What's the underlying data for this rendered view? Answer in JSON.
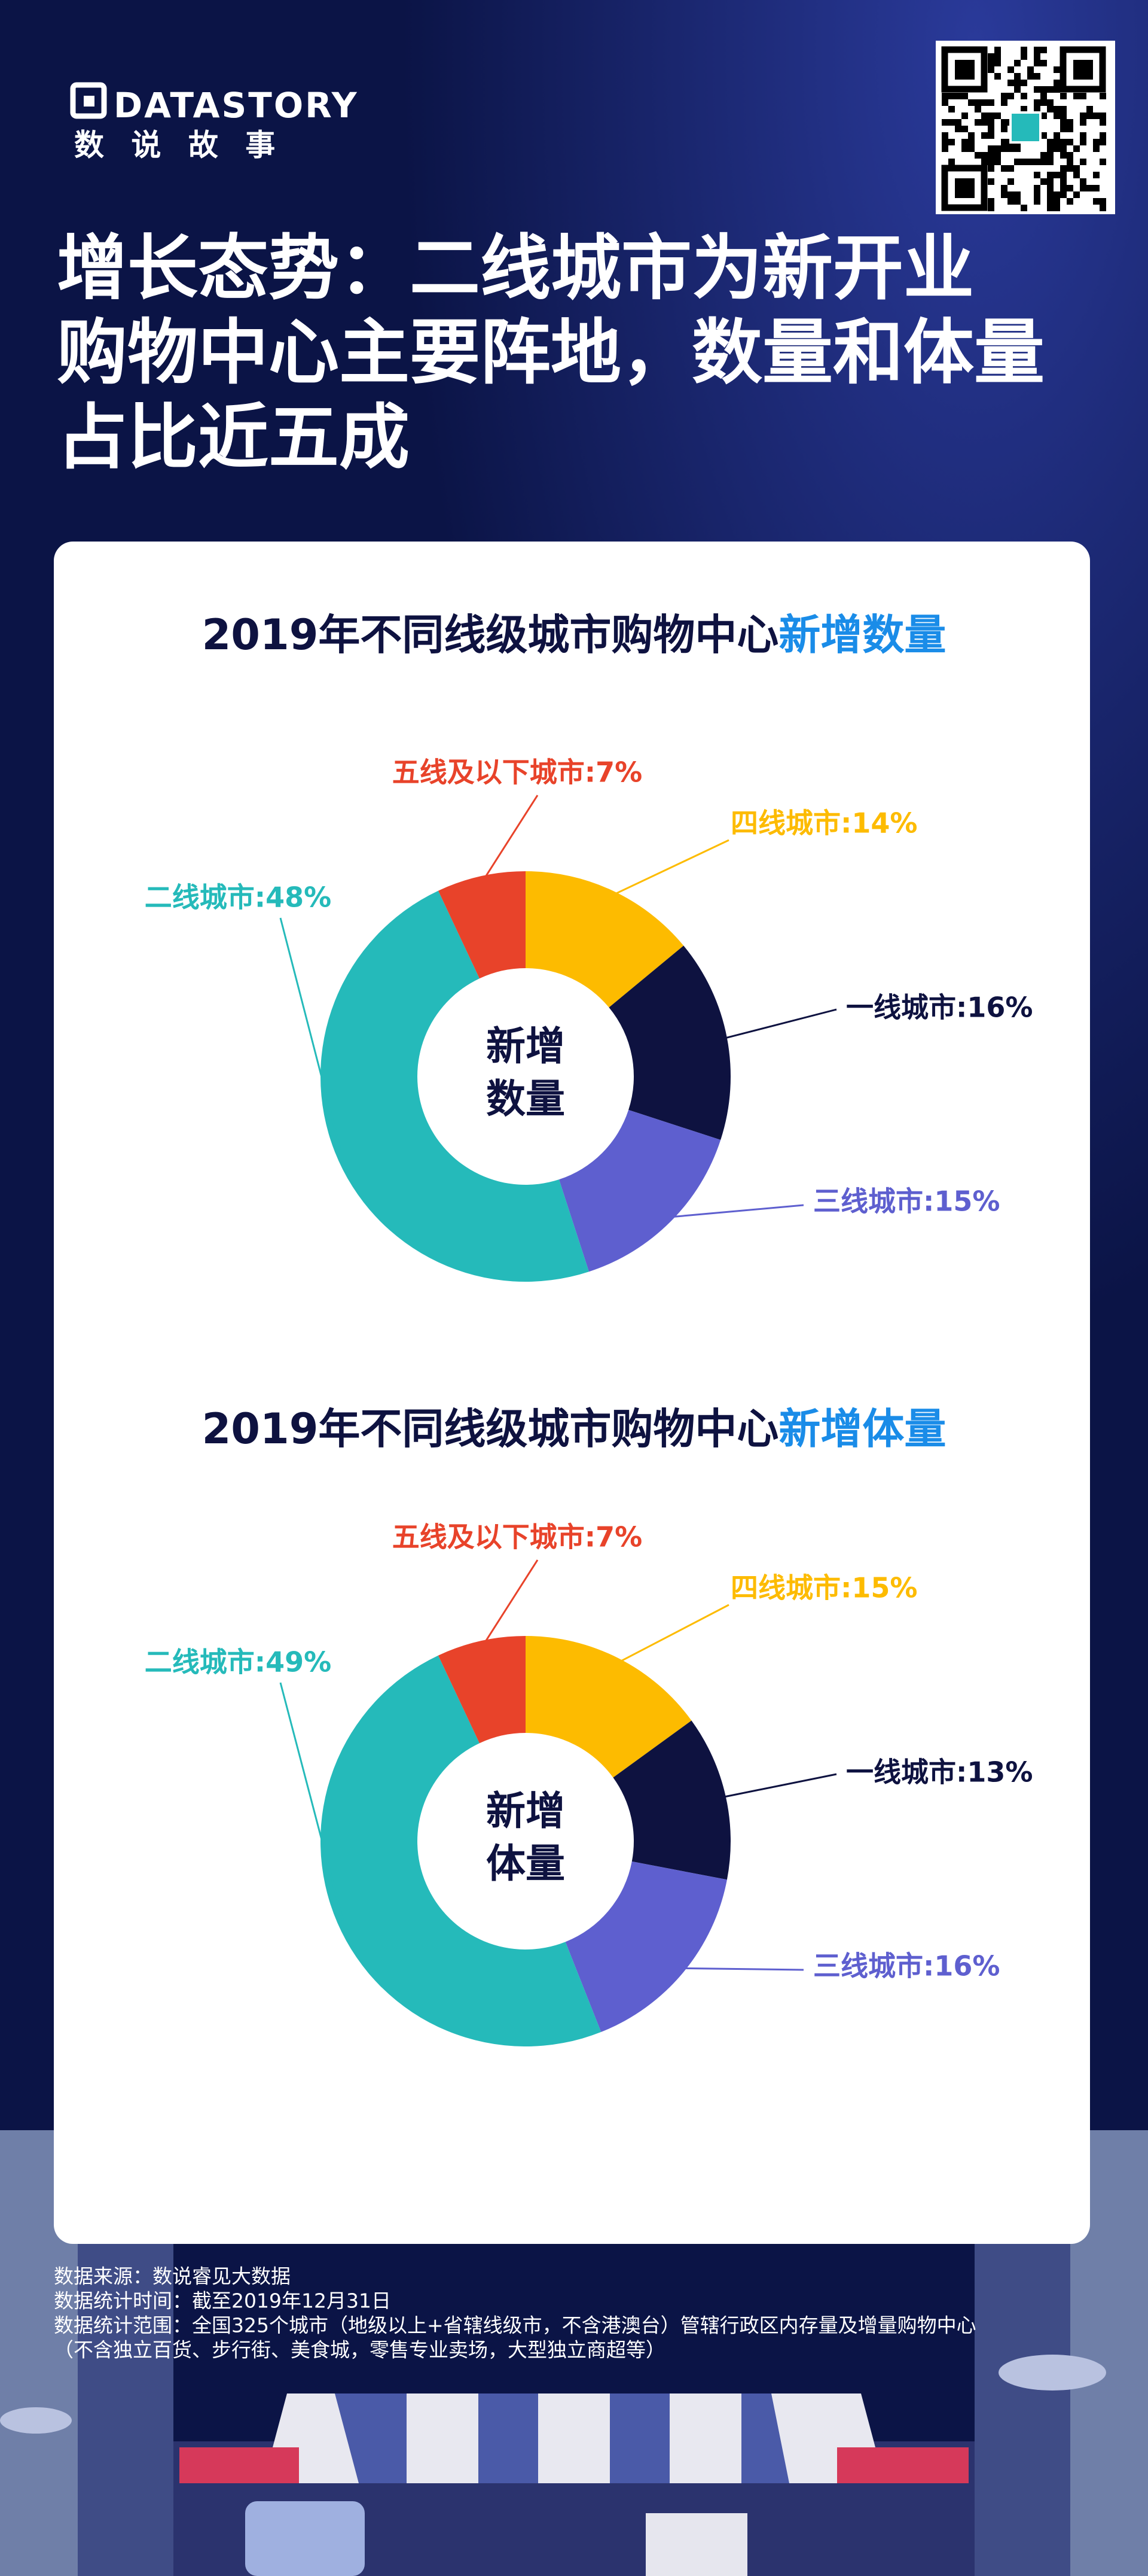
{
  "header": {
    "brand": "DATASTORY",
    "brand_cn": "数 说 故 事",
    "title_lines": [
      "增长态势：二线城市为新开业",
      "购物中心主要阵地，数量和体量",
      "占比近五成"
    ]
  },
  "chart_data": [
    {
      "type": "donut",
      "title": "2019年不同线级城市购物中心",
      "title_highlight": "新增数量",
      "center_label": [
        "新增",
        "数量"
      ],
      "values": [
        14,
        16,
        15,
        48,
        7
      ],
      "value_labels": [
        "四线城市:14%",
        "一线城市:16%",
        "三线城市:15%",
        "二线城市:48%",
        "五线及以下城市:7%"
      ],
      "colors": [
        "#fdbb00",
        "#0e1240",
        "#5e5fcf",
        "#25baba",
        "#e8432a"
      ]
    },
    {
      "type": "donut",
      "title": "2019年不同线级城市购物中心",
      "title_highlight": "新增体量",
      "center_label": [
        "新增",
        "体量"
      ],
      "values": [
        15,
        13,
        16,
        49,
        7
      ],
      "value_labels": [
        "四线城市:15%",
        "一线城市:13%",
        "三线城市:16%",
        "二线城市:49%",
        "五线及以下城市:7%"
      ],
      "colors": [
        "#fdbb00",
        "#0e1240",
        "#5e5fcf",
        "#25baba",
        "#e8432a"
      ]
    }
  ],
  "footer": {
    "notes": [
      "数据来源：数说睿见大数据",
      "数据统计时间：截至2019年12月31日",
      "数据统计范围：全国325个城市（地级以上+省辖线级市，不含港澳台）管辖行政区内存量及增量购物中心",
      "（不含独立百货、步行街、美食城，零售专业卖场，大型独立商超等）"
    ]
  }
}
